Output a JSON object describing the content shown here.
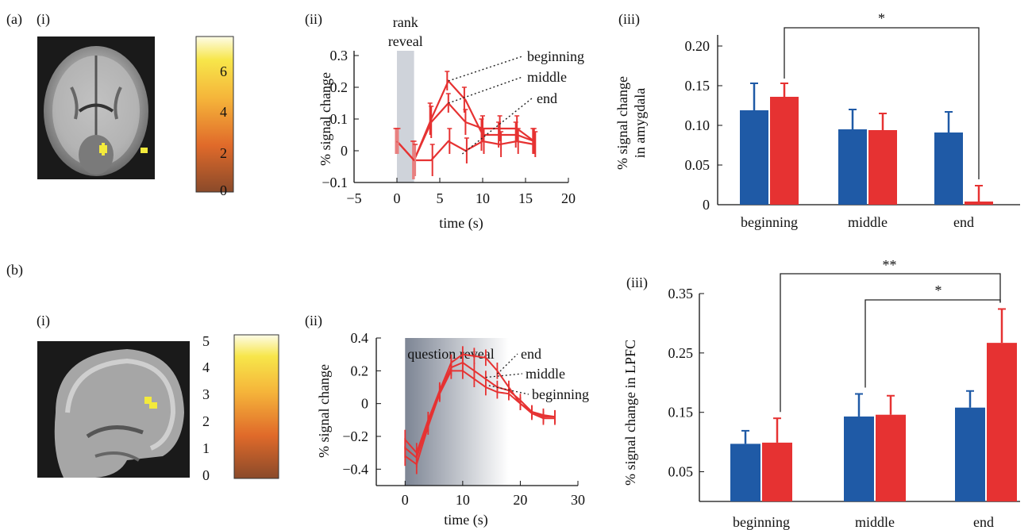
{
  "panels": {
    "a": {
      "label": "(a)",
      "sub_i": "(i)",
      "sub_ii": "(ii)",
      "sub_iii": "(iii)",
      "colorbar_ticks": [
        "6",
        "4",
        "2",
        "0"
      ],
      "colors": {
        "cold": "#a0522d",
        "warm": "#f7e64a",
        "hot": "#fdfce8",
        "blob": "#f3ea3c"
      }
    },
    "b": {
      "label": "(b)",
      "sub_i": "(i)",
      "sub_ii": "(ii)",
      "sub_iii": "(iii)",
      "colorbar_ticks": [
        "5",
        "4",
        "3",
        "2",
        "1",
        "0"
      ]
    }
  },
  "chart_data": [
    {
      "id": "a-ii",
      "type": "line",
      "xlabel": "time (s)",
      "ylabel": "% signal change",
      "xlim": [
        -5,
        20
      ],
      "ylim": [
        -0.1,
        0.3
      ],
      "xticks": [
        "−5",
        "0",
        "5",
        "10",
        "15",
        "20"
      ],
      "yticks": [
        "−0.1",
        "0",
        "0.1",
        "0.2",
        "0.3"
      ],
      "x": [
        0,
        2,
        4,
        6,
        8,
        10,
        12,
        14,
        16
      ],
      "series": [
        {
          "name": "beginning",
          "values": [
            0.03,
            -0.03,
            0.1,
            0.22,
            0.16,
            0.05,
            0.05,
            0.05,
            0.03
          ],
          "err": [
            0.04,
            0.06,
            0.05,
            0.03,
            0.04,
            0.05,
            0.04,
            0.04,
            0.04
          ]
        },
        {
          "name": "middle",
          "values": [
            0.03,
            -0.03,
            0.09,
            0.15,
            0.09,
            0.07,
            0.07,
            0.07,
            0.03
          ],
          "err": [
            0.04,
            0.06,
            0.05,
            0.03,
            0.04,
            0.04,
            0.04,
            0.04,
            0.04
          ]
        },
        {
          "name": "end",
          "values": [
            0.03,
            -0.03,
            -0.03,
            0.03,
            0.0,
            0.03,
            0.02,
            0.03,
            0.02
          ],
          "err": [
            0.04,
            0.05,
            0.05,
            0.04,
            0.04,
            0.04,
            0.04,
            0.04,
            0.04
          ]
        }
      ],
      "annotation": [
        "rank",
        "reveal"
      ]
    },
    {
      "id": "a-iii",
      "type": "bar",
      "ylabel": [
        "% signal change",
        "in amygdala"
      ],
      "ylim": [
        0,
        0.2
      ],
      "yticks": [
        "0",
        "0.05",
        "0.10",
        "0.15",
        "0.20"
      ],
      "categories": [
        "beginning",
        "middle",
        "end"
      ],
      "series": [
        {
          "values": [
            0.119,
            0.095,
            0.091
          ],
          "err": [
            0.034,
            0.025,
            0.026
          ],
          "color": "#1f5aa6"
        },
        {
          "values": [
            0.136,
            0.094,
            0.004
          ],
          "err": [
            0.017,
            0.021,
            0.02
          ],
          "color": "#e63232"
        }
      ],
      "significance": [
        "*"
      ]
    },
    {
      "id": "b-ii",
      "type": "line",
      "xlabel": "time (s)",
      "ylabel": "% signal change",
      "xlim": [
        -5,
        30
      ],
      "ylim": [
        -0.5,
        0.4
      ],
      "xticks": [
        "0",
        "10",
        "20",
        "30"
      ],
      "yticks": [
        "−0.4",
        "−0.2",
        "0",
        "0.2",
        "0.4"
      ],
      "x": [
        0,
        2,
        4,
        6,
        8,
        10,
        12,
        14,
        16,
        18,
        20,
        22,
        24,
        26
      ],
      "series": [
        {
          "name": "end",
          "values": [
            -0.22,
            -0.3,
            -0.1,
            0.08,
            0.25,
            0.3,
            0.29,
            0.28,
            0.2,
            0.1,
            0.0,
            -0.05,
            -0.07,
            -0.08
          ],
          "err": [
            0.06,
            0.06,
            0.05,
            0.05,
            0.05,
            0.05,
            0.05,
            0.05,
            0.05,
            0.04,
            0.04,
            0.04,
            0.04,
            0.04
          ]
        },
        {
          "name": "middle",
          "values": [
            -0.27,
            -0.33,
            -0.12,
            0.07,
            0.22,
            0.25,
            0.2,
            0.15,
            0.1,
            0.08,
            0.02,
            -0.05,
            -0.08,
            -0.08
          ],
          "err": [
            0.06,
            0.06,
            0.05,
            0.05,
            0.05,
            0.05,
            0.05,
            0.05,
            0.04,
            0.04,
            0.04,
            0.04,
            0.04,
            0.04
          ]
        },
        {
          "name": "beginning",
          "values": [
            -0.32,
            -0.37,
            -0.14,
            0.06,
            0.2,
            0.2,
            0.15,
            0.1,
            0.07,
            0.06,
            0.0,
            -0.06,
            -0.09,
            -0.09
          ],
          "err": [
            0.06,
            0.06,
            0.05,
            0.05,
            0.05,
            0.05,
            0.05,
            0.05,
            0.04,
            0.04,
            0.04,
            0.04,
            0.04,
            0.04
          ]
        }
      ],
      "annotation": "question reveal"
    },
    {
      "id": "b-iii",
      "type": "bar",
      "ylabel": "% signal change in LPFC",
      "ylim": [
        0,
        0.35
      ],
      "yticks": [
        "0.05",
        "0.15",
        "0.25",
        "0.35"
      ],
      "categories": [
        "beginning",
        "middle",
        "end"
      ],
      "series": [
        {
          "values": [
            0.097,
            0.143,
            0.158
          ],
          "err": [
            0.022,
            0.038,
            0.028
          ],
          "color": "#1f5aa6"
        },
        {
          "values": [
            0.099,
            0.146,
            0.267
          ],
          "err": [
            0.041,
            0.032,
            0.057
          ],
          "color": "#e63232"
        }
      ],
      "significance": [
        "**",
        "*"
      ]
    }
  ]
}
